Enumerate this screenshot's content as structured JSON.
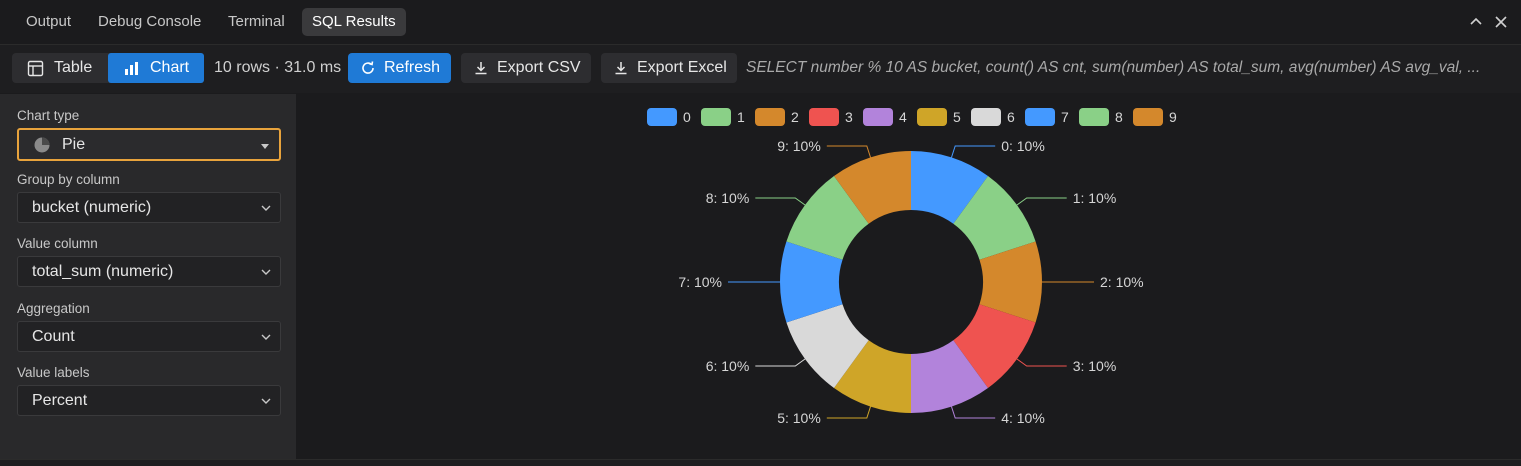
{
  "tabs": [
    {
      "label": "Output",
      "active": false
    },
    {
      "label": "Debug Console",
      "active": false
    },
    {
      "label": "Terminal",
      "active": false
    },
    {
      "label": "SQL Results",
      "active": true
    }
  ],
  "window_controls": {
    "collapse_icon": "chevron-up-icon",
    "close_icon": "close-icon"
  },
  "toolbar": {
    "view_table_label": "Table",
    "view_chart_label": "Chart",
    "active_view": "Chart",
    "result_meta": "10 rows · 31.0 ms",
    "refresh_label": "Refresh",
    "export_csv_label": "Export CSV",
    "export_excel_label": "Export Excel",
    "sql_preview": "SELECT number % 10 AS bucket, count() AS cnt, sum(number) AS total_sum, avg(number) AS avg_val, ..."
  },
  "settings": {
    "chart_type_label": "Chart type",
    "chart_type_value": "Pie",
    "group_by_label": "Group by column",
    "group_by_value": "bucket (numeric)",
    "value_column_label": "Value column",
    "value_column_value": "total_sum (numeric)",
    "aggregation_label": "Aggregation",
    "aggregation_value": "Count",
    "value_labels_label": "Value labels",
    "value_labels_value": "Percent"
  },
  "colors": {
    "accent": "#1f7ad6",
    "focus": "#e8a33c",
    "slices": [
      "#4499ff",
      "#8ad087",
      "#d4882c",
      "#ef5350",
      "#b283db",
      "#cfa528",
      "#d9d9d9",
      "#4499ff",
      "#8ad087",
      "#d4882c"
    ]
  },
  "chart_data": {
    "type": "pie",
    "donut": true,
    "categories": [
      "0",
      "1",
      "2",
      "3",
      "4",
      "5",
      "6",
      "7",
      "8",
      "9"
    ],
    "values": [
      10,
      10,
      10,
      10,
      10,
      10,
      10,
      10,
      10,
      10
    ],
    "value_unit": "%",
    "labels": [
      "0: 10%",
      "1: 10%",
      "2: 10%",
      "3: 10%",
      "4: 10%",
      "5: 10%",
      "6: 10%",
      "7: 10%",
      "8: 10%",
      "9: 10%"
    ],
    "legend": [
      "0",
      "1",
      "2",
      "3",
      "4",
      "5",
      "6",
      "7",
      "8",
      "9"
    ],
    "legend_position": "top"
  }
}
